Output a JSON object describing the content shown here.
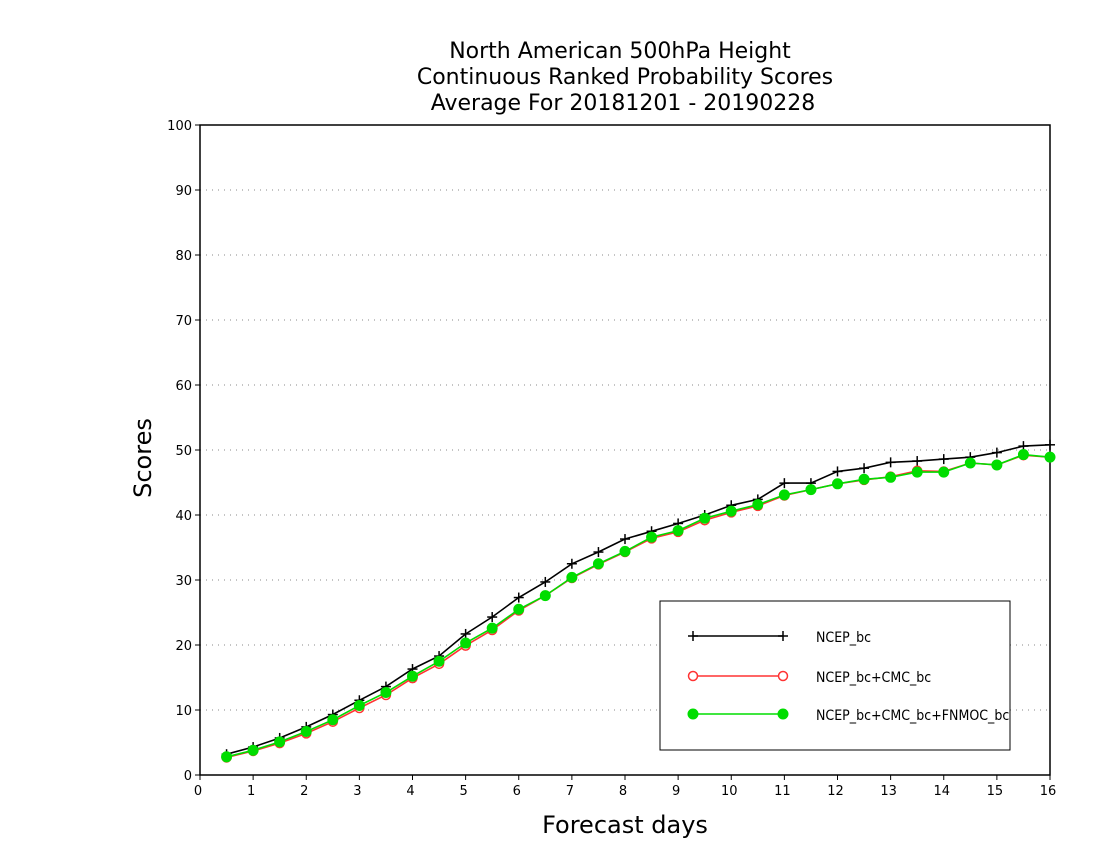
{
  "chart_data": {
    "type": "line",
    "title_lines": [
      "North American 500hPa Height",
      "Continuous Ranked Probability Scores",
      "Average For 20181201 - 20190228"
    ],
    "xlabel": "Forecast days",
    "ylabel": "Scores",
    "xlim": [
      0,
      16
    ],
    "ylim": [
      0,
      100
    ],
    "xticks": [
      "0",
      "1",
      "2",
      "3",
      "4",
      "5",
      "6",
      "7",
      "8",
      "9",
      "10",
      "11",
      "12",
      "13",
      "14",
      "15",
      "16"
    ],
    "yticks": [
      "0",
      "10",
      "20",
      "30",
      "40",
      "50",
      "60",
      "70",
      "80",
      "90",
      "100"
    ],
    "grid": "horizontal dotted",
    "legend_position": "bottom-right",
    "x": [
      0.5,
      1,
      1.5,
      2,
      2.5,
      3,
      3.5,
      4,
      4.5,
      5,
      5.5,
      6,
      6.5,
      7,
      7.5,
      8,
      8.5,
      9,
      9.5,
      10,
      10.5,
      11,
      11.5,
      12,
      12.5,
      13,
      13.5,
      14,
      14.5,
      15,
      15.5,
      16
    ],
    "series": [
      {
        "name": "NCEP_bc",
        "color": "#000000",
        "marker": "plus",
        "values": [
          3.2,
          4.3,
          5.7,
          7.4,
          9.3,
          11.5,
          13.6,
          16.3,
          18.3,
          21.7,
          24.3,
          27.3,
          29.7,
          32.5,
          34.3,
          36.3,
          37.5,
          38.7,
          40.0,
          41.5,
          42.4,
          44.9,
          44.9,
          46.7,
          47.2,
          48.1,
          48.3,
          48.6,
          48.9,
          49.6,
          50.6,
          50.8
        ]
      },
      {
        "name": "NCEP_bc+CMC_bc",
        "color": "#ff3333",
        "marker": "open-circle",
        "values": [
          2.7,
          3.7,
          4.9,
          6.4,
          8.2,
          10.3,
          12.3,
          14.9,
          17.1,
          19.9,
          22.3,
          25.3,
          27.6,
          30.3,
          32.4,
          34.3,
          36.4,
          37.4,
          39.2,
          40.4,
          41.4,
          43.0,
          43.9,
          44.8,
          45.4,
          45.9,
          46.8,
          46.7,
          48.0,
          47.7,
          49.2,
          48.9
        ]
      },
      {
        "name": "NCEP_bc+CMC_bc+FNMOC_bc",
        "color": "#00dd00",
        "marker": "filled-circle",
        "values": [
          2.8,
          3.8,
          5.1,
          6.7,
          8.5,
          10.7,
          12.7,
          15.2,
          17.5,
          20.3,
          22.6,
          25.5,
          27.6,
          30.4,
          32.5,
          34.4,
          36.6,
          37.6,
          39.5,
          40.6,
          41.6,
          43.1,
          43.9,
          44.8,
          45.5,
          45.8,
          46.6,
          46.6,
          48.0,
          47.7,
          49.3,
          48.9
        ]
      }
    ]
  }
}
